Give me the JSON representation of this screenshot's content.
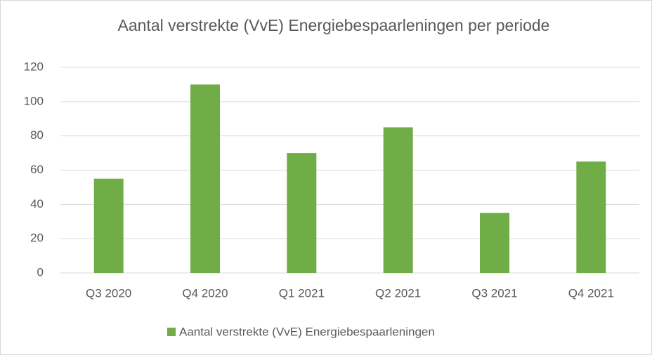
{
  "chart_data": {
    "type": "bar",
    "title": "Aantal verstrekte (VvE) Energiebespaarleningen per periode",
    "categories": [
      "Q3 2020",
      "Q4 2020",
      "Q1 2021",
      "Q2 2021",
      "Q3 2021",
      "Q4 2021"
    ],
    "series": [
      {
        "name": "Aantal verstrekte (VvE) Energiebespaarleningen",
        "color": "#70ad47",
        "values": [
          55,
          110,
          70,
          85,
          35,
          65
        ]
      }
    ],
    "ylim": [
      0,
      120
    ],
    "yticks": [
      0,
      20,
      40,
      60,
      80,
      100,
      120
    ],
    "grid": true,
    "legend": "bottom"
  }
}
